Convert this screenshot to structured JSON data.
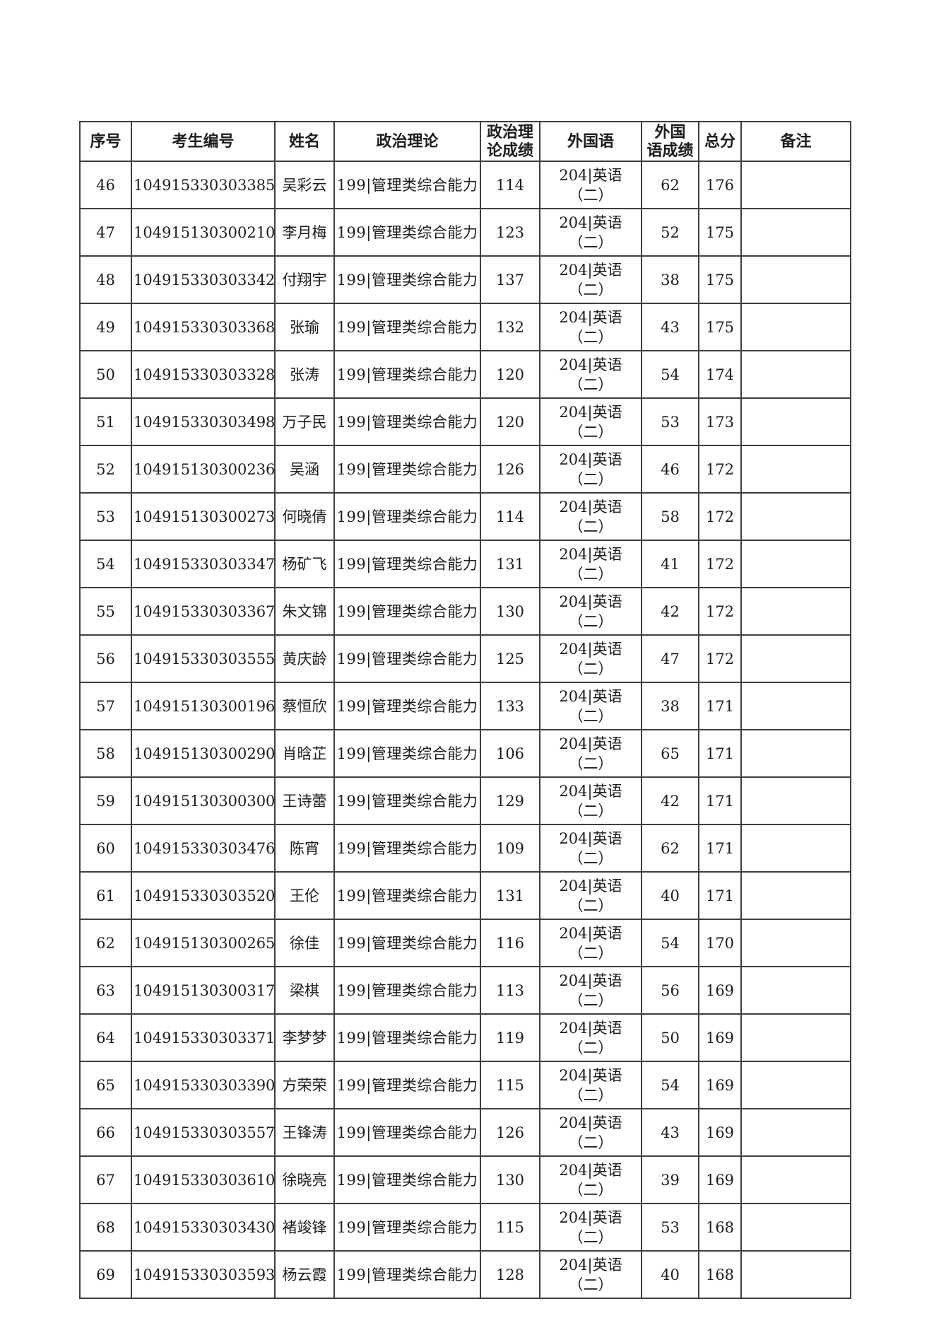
{
  "table": {
    "headers": [
      "序号",
      "考生编号",
      "姓名",
      "政治理论",
      "政治理\n论成绩",
      "外国语",
      "外国\n语成绩",
      "总分",
      "备注"
    ],
    "column_keys": [
      "index",
      "candidate_id",
      "name",
      "politics_subject",
      "politics_score",
      "foreign_subject",
      "foreign_score",
      "total",
      "remarks"
    ],
    "rows": [
      {
        "index": "46",
        "candidate_id": "104915330303385",
        "name": "吴彩云",
        "politics_subject": "199|管理类综合能力",
        "politics_score": "114",
        "foreign_subject": "204|英语（二）",
        "foreign_score": "62",
        "total": "176",
        "remarks": ""
      },
      {
        "index": "47",
        "candidate_id": "104915130300210",
        "name": "李月梅",
        "politics_subject": "199|管理类综合能力",
        "politics_score": "123",
        "foreign_subject": "204|英语（二）",
        "foreign_score": "52",
        "total": "175",
        "remarks": ""
      },
      {
        "index": "48",
        "candidate_id": "104915330303342",
        "name": "付翔宇",
        "politics_subject": "199|管理类综合能力",
        "politics_score": "137",
        "foreign_subject": "204|英语（二）",
        "foreign_score": "38",
        "total": "175",
        "remarks": ""
      },
      {
        "index": "49",
        "candidate_id": "104915330303368",
        "name": "张瑜",
        "politics_subject": "199|管理类综合能力",
        "politics_score": "132",
        "foreign_subject": "204|英语（二）",
        "foreign_score": "43",
        "total": "175",
        "remarks": ""
      },
      {
        "index": "50",
        "candidate_id": "104915330303328",
        "name": "张涛",
        "politics_subject": "199|管理类综合能力",
        "politics_score": "120",
        "foreign_subject": "204|英语（二）",
        "foreign_score": "54",
        "total": "174",
        "remarks": ""
      },
      {
        "index": "51",
        "candidate_id": "104915330303498",
        "name": "万子民",
        "politics_subject": "199|管理类综合能力",
        "politics_score": "120",
        "foreign_subject": "204|英语（二）",
        "foreign_score": "53",
        "total": "173",
        "remarks": ""
      },
      {
        "index": "52",
        "candidate_id": "104915130300236",
        "name": "吴涵",
        "politics_subject": "199|管理类综合能力",
        "politics_score": "126",
        "foreign_subject": "204|英语（二）",
        "foreign_score": "46",
        "total": "172",
        "remarks": ""
      },
      {
        "index": "53",
        "candidate_id": "104915130300273",
        "name": "何晓倩",
        "politics_subject": "199|管理类综合能力",
        "politics_score": "114",
        "foreign_subject": "204|英语（二）",
        "foreign_score": "58",
        "total": "172",
        "remarks": ""
      },
      {
        "index": "54",
        "candidate_id": "104915330303347",
        "name": "杨矿飞",
        "politics_subject": "199|管理类综合能力",
        "politics_score": "131",
        "foreign_subject": "204|英语（二）",
        "foreign_score": "41",
        "total": "172",
        "remarks": ""
      },
      {
        "index": "55",
        "candidate_id": "104915330303367",
        "name": "朱文锦",
        "politics_subject": "199|管理类综合能力",
        "politics_score": "130",
        "foreign_subject": "204|英语（二）",
        "foreign_score": "42",
        "total": "172",
        "remarks": ""
      },
      {
        "index": "56",
        "candidate_id": "104915330303555",
        "name": "黄庆龄",
        "politics_subject": "199|管理类综合能力",
        "politics_score": "125",
        "foreign_subject": "204|英语（二）",
        "foreign_score": "47",
        "total": "172",
        "remarks": ""
      },
      {
        "index": "57",
        "candidate_id": "104915130300196",
        "name": "蔡恒欣",
        "politics_subject": "199|管理类综合能力",
        "politics_score": "133",
        "foreign_subject": "204|英语（二）",
        "foreign_score": "38",
        "total": "171",
        "remarks": ""
      },
      {
        "index": "58",
        "candidate_id": "104915130300290",
        "name": "肖晗芷",
        "politics_subject": "199|管理类综合能力",
        "politics_score": "106",
        "foreign_subject": "204|英语（二）",
        "foreign_score": "65",
        "total": "171",
        "remarks": ""
      },
      {
        "index": "59",
        "candidate_id": "104915130300300",
        "name": "王诗蕾",
        "politics_subject": "199|管理类综合能力",
        "politics_score": "129",
        "foreign_subject": "204|英语（二）",
        "foreign_score": "42",
        "total": "171",
        "remarks": ""
      },
      {
        "index": "60",
        "candidate_id": "104915330303476",
        "name": "陈宵",
        "politics_subject": "199|管理类综合能力",
        "politics_score": "109",
        "foreign_subject": "204|英语（二）",
        "foreign_score": "62",
        "total": "171",
        "remarks": ""
      },
      {
        "index": "61",
        "candidate_id": "104915330303520",
        "name": "王伦",
        "politics_subject": "199|管理类综合能力",
        "politics_score": "131",
        "foreign_subject": "204|英语（二）",
        "foreign_score": "40",
        "total": "171",
        "remarks": ""
      },
      {
        "index": "62",
        "candidate_id": "104915130300265",
        "name": "徐佳",
        "politics_subject": "199|管理类综合能力",
        "politics_score": "116",
        "foreign_subject": "204|英语（二）",
        "foreign_score": "54",
        "total": "170",
        "remarks": ""
      },
      {
        "index": "63",
        "candidate_id": "104915130300317",
        "name": "梁棋",
        "politics_subject": "199|管理类综合能力",
        "politics_score": "113",
        "foreign_subject": "204|英语（二）",
        "foreign_score": "56",
        "total": "169",
        "remarks": ""
      },
      {
        "index": "64",
        "candidate_id": "104915330303371",
        "name": "李梦梦",
        "politics_subject": "199|管理类综合能力",
        "politics_score": "119",
        "foreign_subject": "204|英语（二）",
        "foreign_score": "50",
        "total": "169",
        "remarks": ""
      },
      {
        "index": "65",
        "candidate_id": "104915330303390",
        "name": "方荣荣",
        "politics_subject": "199|管理类综合能力",
        "politics_score": "115",
        "foreign_subject": "204|英语（二）",
        "foreign_score": "54",
        "total": "169",
        "remarks": ""
      },
      {
        "index": "66",
        "candidate_id": "104915330303557",
        "name": "王锋涛",
        "politics_subject": "199|管理类综合能力",
        "politics_score": "126",
        "foreign_subject": "204|英语（二）",
        "foreign_score": "43",
        "total": "169",
        "remarks": ""
      },
      {
        "index": "67",
        "candidate_id": "104915330303610",
        "name": "徐晓亮",
        "politics_subject": "199|管理类综合能力",
        "politics_score": "130",
        "foreign_subject": "204|英语（二）",
        "foreign_score": "39",
        "total": "169",
        "remarks": ""
      },
      {
        "index": "68",
        "candidate_id": "104915330303430",
        "name": "褚竣锋",
        "politics_subject": "199|管理类综合能力",
        "politics_score": "115",
        "foreign_subject": "204|英语（二）",
        "foreign_score": "53",
        "total": "168",
        "remarks": ""
      },
      {
        "index": "69",
        "candidate_id": "104915330303593",
        "name": "杨云霞",
        "politics_subject": "199|管理类综合能力",
        "politics_score": "128",
        "foreign_subject": "204|英语（二）",
        "foreign_score": "40",
        "total": "168",
        "remarks": ""
      }
    ]
  },
  "colors": {
    "page_background": "#ffffff",
    "border": "#3f3f3f",
    "text": "#1c1c1c"
  }
}
